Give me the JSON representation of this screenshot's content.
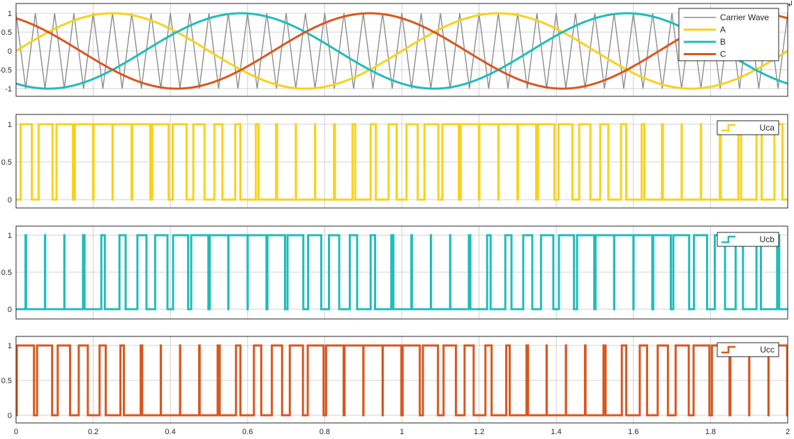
{
  "window": {
    "corner_glyph": "↲"
  },
  "colors": {
    "carrier": "#8c8c8c",
    "phase_a": "#f7d21a",
    "phase_b": "#1fbcbc",
    "phase_c": "#d9561e",
    "grid": "#d0d0d0",
    "axes": "#262626"
  },
  "chart_data": [
    {
      "type": "line",
      "name_hint": "modulation",
      "xlim": [
        0,
        2
      ],
      "ylim": [
        -1.25,
        1.25
      ],
      "yticks": [
        1,
        0.5,
        0,
        -0.5,
        -1
      ],
      "ytick_labels": [
        "1",
        "0.5",
        "0",
        "-0.5",
        "-1"
      ],
      "grid": true,
      "legend_position": "top-right",
      "legend": [
        "Carrier Wave",
        "A",
        "B",
        "C"
      ],
      "series": [
        {
          "name": "Carrier Wave",
          "kind": "triangle",
          "amplitude": 1,
          "frequency_hz": 20,
          "color_key": "carrier"
        },
        {
          "name": "A",
          "kind": "sine",
          "amplitude": 1,
          "frequency_hz": 1,
          "phase_deg": 0,
          "color_key": "phase_a"
        },
        {
          "name": "B",
          "kind": "sine",
          "amplitude": 1,
          "frequency_hz": 1,
          "phase_deg": -120,
          "color_key": "phase_b"
        },
        {
          "name": "C",
          "kind": "sine",
          "amplitude": 1,
          "frequency_hz": 1,
          "phase_deg": 120,
          "color_key": "phase_c"
        }
      ]
    },
    {
      "type": "line",
      "name_hint": "pwm-a",
      "xlim": [
        0,
        2
      ],
      "ylim": [
        -0.12,
        1.12
      ],
      "yticks": [
        1,
        0.5,
        0
      ],
      "ytick_labels": [
        "1",
        "0.5",
        "0"
      ],
      "grid": true,
      "legend_position": "top-right",
      "legend": [
        "Uca"
      ],
      "series": [
        {
          "name": "Uca",
          "kind": "pwm",
          "ref_phase_deg": 0,
          "color_key": "phase_a"
        }
      ]
    },
    {
      "type": "line",
      "name_hint": "pwm-b",
      "xlim": [
        0,
        2
      ],
      "ylim": [
        -0.12,
        1.12
      ],
      "yticks": [
        1,
        0.5,
        0
      ],
      "ytick_labels": [
        "1",
        "0.5",
        "0"
      ],
      "grid": true,
      "legend_position": "top-right",
      "legend": [
        "Ucb"
      ],
      "series": [
        {
          "name": "Ucb",
          "kind": "pwm",
          "ref_phase_deg": -120,
          "color_key": "phase_b"
        }
      ]
    },
    {
      "type": "line",
      "name_hint": "pwm-c",
      "xlim": [
        0,
        2
      ],
      "ylim": [
        -0.12,
        1.12
      ],
      "yticks": [
        1,
        0.5,
        0
      ],
      "ytick_labels": [
        "1",
        "0.5",
        "0"
      ],
      "grid": true,
      "legend_position": "top-right",
      "legend": [
        "Ucc"
      ],
      "series": [
        {
          "name": "Ucc",
          "kind": "pwm",
          "ref_phase_deg": 120,
          "color_key": "phase_c"
        }
      ]
    }
  ],
  "x_axis": {
    "ticks": [
      0,
      0.2,
      0.4,
      0.6,
      0.8,
      1,
      1.2,
      1.4,
      1.6,
      1.8,
      2
    ],
    "tick_labels": [
      "0",
      "0.2",
      "0.4",
      "0.6",
      "0.8",
      "1",
      "1.2",
      "1.4",
      "1.6",
      "1.8",
      "2"
    ]
  }
}
